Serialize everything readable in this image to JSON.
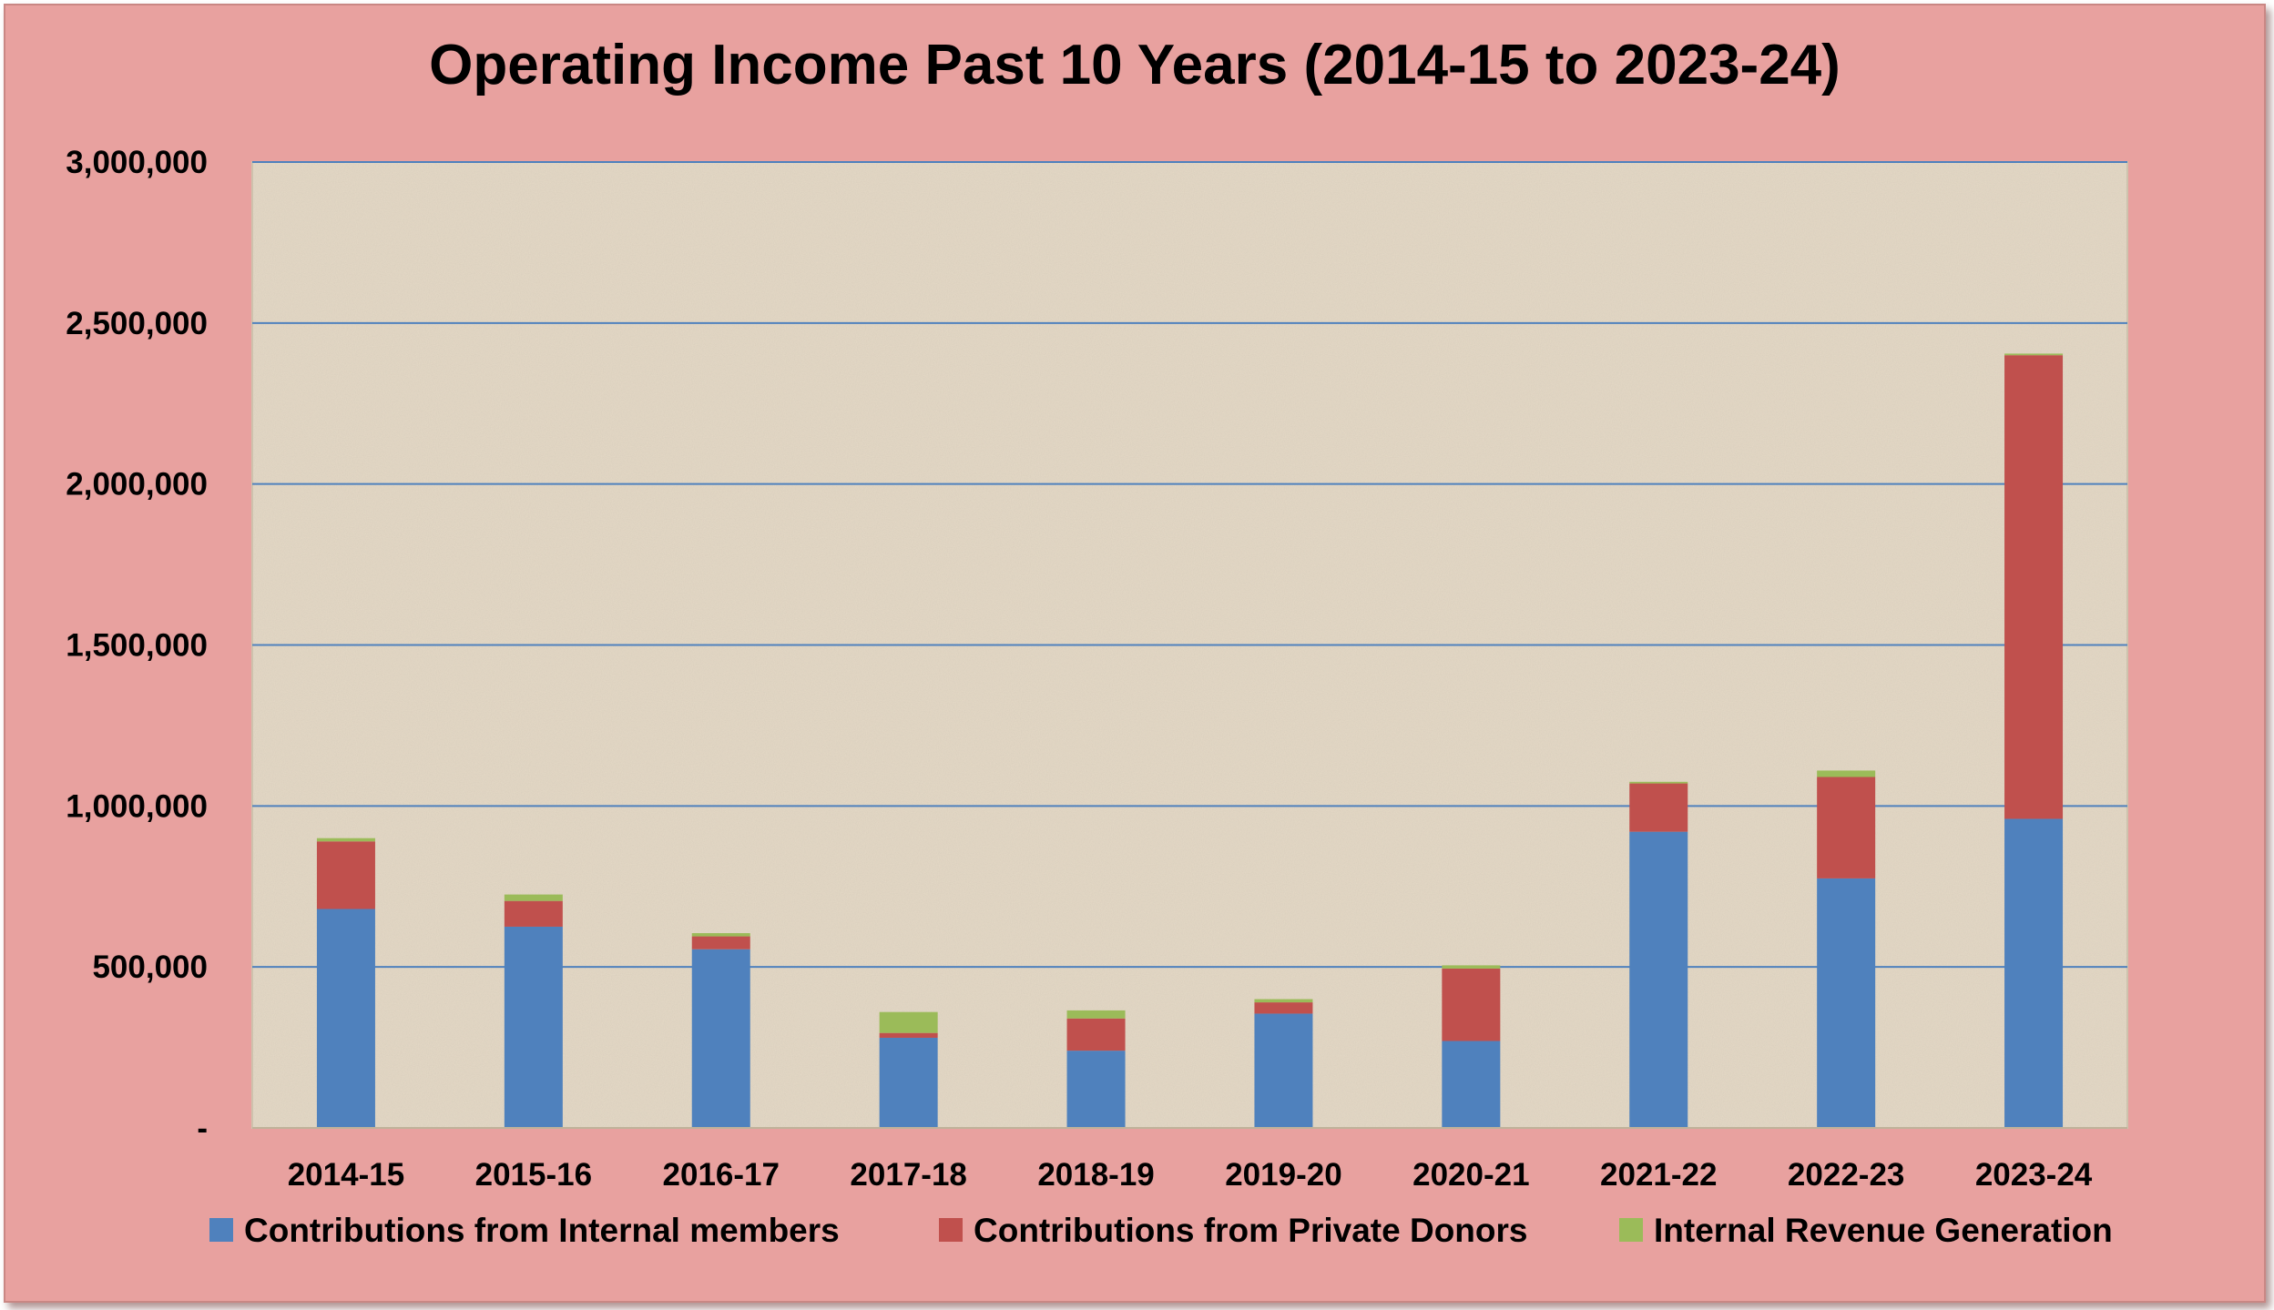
{
  "chart_data": {
    "type": "bar",
    "stacked": true,
    "title": "Operating Income Past 10 Years (2014-15 to 2023-24)",
    "xlabel": "",
    "ylabel": "",
    "categories": [
      "2014-15",
      "2015-16",
      "2016-17",
      "2017-18",
      "2018-19",
      "2019-20",
      "2020-21",
      "2021-22",
      "2022-23",
      "2023-24"
    ],
    "series": [
      {
        "name": "Contributions from Internal members",
        "color": "#4f81bd",
        "values": [
          680000,
          625000,
          555000,
          280000,
          240000,
          355000,
          270000,
          920000,
          775000,
          960000
        ]
      },
      {
        "name": "Contributions from Private Donors",
        "color": "#c0504d",
        "values": [
          210000,
          80000,
          40000,
          15000,
          100000,
          35000,
          225000,
          150000,
          315000,
          1440000
        ]
      },
      {
        "name": "Internal Revenue Generation",
        "color": "#9bbb59",
        "values": [
          10000,
          20000,
          10000,
          65000,
          25000,
          10000,
          10000,
          5000,
          20000,
          5000
        ]
      }
    ],
    "ylim": [
      0,
      3000000
    ],
    "yticks": [
      0,
      500000,
      1000000,
      1500000,
      2000000,
      2500000,
      3000000
    ],
    "ytick_labels": [
      "-",
      "500,000",
      "1,000,000",
      "1,500,000",
      "2,000,000",
      "2,500,000",
      "3,000,000"
    ],
    "grid": true,
    "legend_position": "bottom",
    "colors": {
      "frame_background": "#e8a19f",
      "plot_background": "#e5d9c6",
      "gridline": "#4f81bd"
    }
  }
}
